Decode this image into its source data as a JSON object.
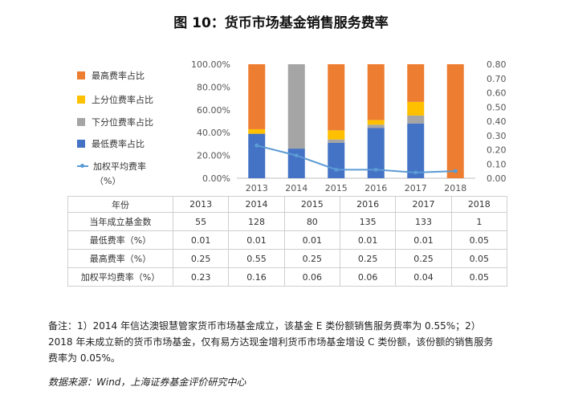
{
  "title": "图 10：货币市场基金销售服务费率",
  "legend": {
    "items": [
      {
        "label": "最高费率占比",
        "color": "#ed7d31"
      },
      {
        "label": "上分位费率占比",
        "color": "#ffc000"
      },
      {
        "label": "下分位费率占比",
        "color": "#a5a5a5"
      },
      {
        "label": "最低费率占比",
        "color": "#4472c4"
      }
    ],
    "line": {
      "label": "加权平均费率",
      "sub": "（%）",
      "color": "#5b9bd5"
    }
  },
  "chart_data": {
    "type": "bar",
    "stacked": true,
    "categories": [
      "2013",
      "2014",
      "2015",
      "2016",
      "2017",
      "2018"
    ],
    "left_axis": {
      "min": 0,
      "max": 1,
      "ticks": [
        "0.00%",
        "20.00%",
        "40.00%",
        "60.00%",
        "80.00%",
        "100.00%"
      ]
    },
    "right_axis": {
      "min": 0,
      "max": 0.8,
      "ticks": [
        "0.00",
        "0.10",
        "0.20",
        "0.30",
        "0.40",
        "0.50",
        "0.60",
        "0.70",
        "0.80"
      ]
    },
    "series": [
      {
        "name": "最低费率占比",
        "color": "#4472c4",
        "values": [
          0.39,
          0.26,
          0.31,
          0.44,
          0.48,
          0.0
        ]
      },
      {
        "name": "下分位费率占比",
        "color": "#a5a5a5",
        "values": [
          0.0,
          0.74,
          0.03,
          0.03,
          0.07,
          0.0
        ]
      },
      {
        "name": "上分位费率占比",
        "color": "#ffc000",
        "values": [
          0.04,
          0.0,
          0.08,
          0.04,
          0.12,
          0.0
        ]
      },
      {
        "name": "最高费率占比",
        "color": "#ed7d31",
        "values": [
          0.57,
          0.0,
          0.58,
          0.49,
          0.33,
          1.0
        ]
      }
    ],
    "line": {
      "name": "加权平均费率（%）",
      "axis": "right",
      "color": "#5b9bd5",
      "values": [
        0.23,
        0.16,
        0.06,
        0.06,
        0.04,
        0.05
      ]
    },
    "grid": false
  },
  "table": {
    "header": [
      "年份",
      "2013",
      "2014",
      "2015",
      "2016",
      "2017",
      "2018"
    ],
    "rows": [
      {
        "label": "当年成立基金数",
        "values": [
          "55",
          "128",
          "80",
          "135",
          "133",
          "1"
        ]
      },
      {
        "label": "最低费率（%）",
        "values": [
          "0.01",
          "0.01",
          "0.01",
          "0.01",
          "0.01",
          "0.05"
        ]
      },
      {
        "label": "最高费率（%）",
        "values": [
          "0.25",
          "0.55",
          "0.25",
          "0.25",
          "0.25",
          "0.05"
        ]
      },
      {
        "label": "加权平均费率（%）",
        "values": [
          "0.23",
          "0.16",
          "0.06",
          "0.06",
          "0.04",
          "0.05"
        ]
      }
    ]
  },
  "notes": {
    "line1": "备注：1）2014 年信达澳银慧管家货币市场基金成立，该基金 E 类份额销售服务费率为 0.55%；2）",
    "line2": "2018 年未成立新的货币市场基金，仅有易方达现金增利货币市场基金增设 C 类份额，该份额的销售服务",
    "line3": "费率为 0.05%。"
  },
  "source": "数据来源：Wind，上海证券基金评价研究中心"
}
